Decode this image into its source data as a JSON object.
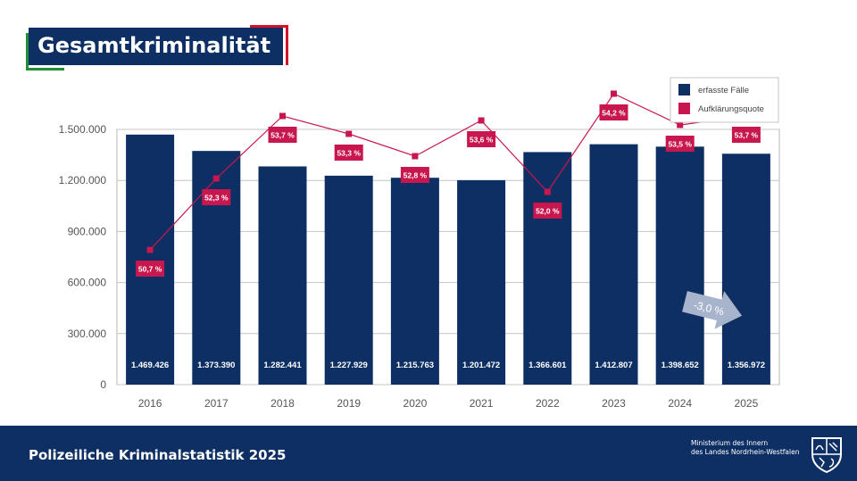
{
  "header": {
    "title": "Gesamtkriminalität"
  },
  "chart_data": {
    "type": "bar",
    "categories": [
      "2016",
      "2017",
      "2018",
      "2019",
      "2020",
      "2021",
      "2022",
      "2023",
      "2024",
      "2025"
    ],
    "series": [
      {
        "name": "erfasste Fälle",
        "type": "bar",
        "color": "#0d2f63",
        "values": [
          1469426,
          1373390,
          1282441,
          1227929,
          1215763,
          1201472,
          1366601,
          1412807,
          1398652,
          1356972
        ],
        "labels": [
          "1.469.426",
          "1.373.390",
          "1.282.441",
          "1.227.929",
          "1.215.763",
          "1.201.472",
          "1.366.601",
          "1.412.807",
          "1.398.652",
          "1.356.972"
        ]
      },
      {
        "name": "Aufklärungsquote",
        "type": "line",
        "color": "#c8174f",
        "values": [
          50.7,
          52.3,
          53.7,
          53.3,
          52.8,
          53.6,
          52.0,
          54.2,
          53.5,
          53.7
        ],
        "labels": [
          "50,7 %",
          "52,3 %",
          "53,7 %",
          "53,3 %",
          "52,8 %",
          "53,6 %",
          "52,0 %",
          "54,2 %",
          "53,5 %",
          "53,7 %"
        ]
      }
    ],
    "ylim": [
      0,
      1500000
    ],
    "yticks": [
      0,
      300000,
      600000,
      900000,
      1200000,
      1500000
    ],
    "ytick_labels": [
      "0",
      "300.000",
      "600.000",
      "900.000",
      "1.200.000",
      "1.500.000"
    ],
    "legend_position": "top-right",
    "annotation": {
      "text": "-3,0 %",
      "color": "#a8b4cc"
    }
  },
  "footer": {
    "title": "Polizeiliche Kriminalstatistik 2025",
    "ministry_line1": "Ministerium des Innern",
    "ministry_line2": "des Landes Nordrhein-Westfalen"
  }
}
